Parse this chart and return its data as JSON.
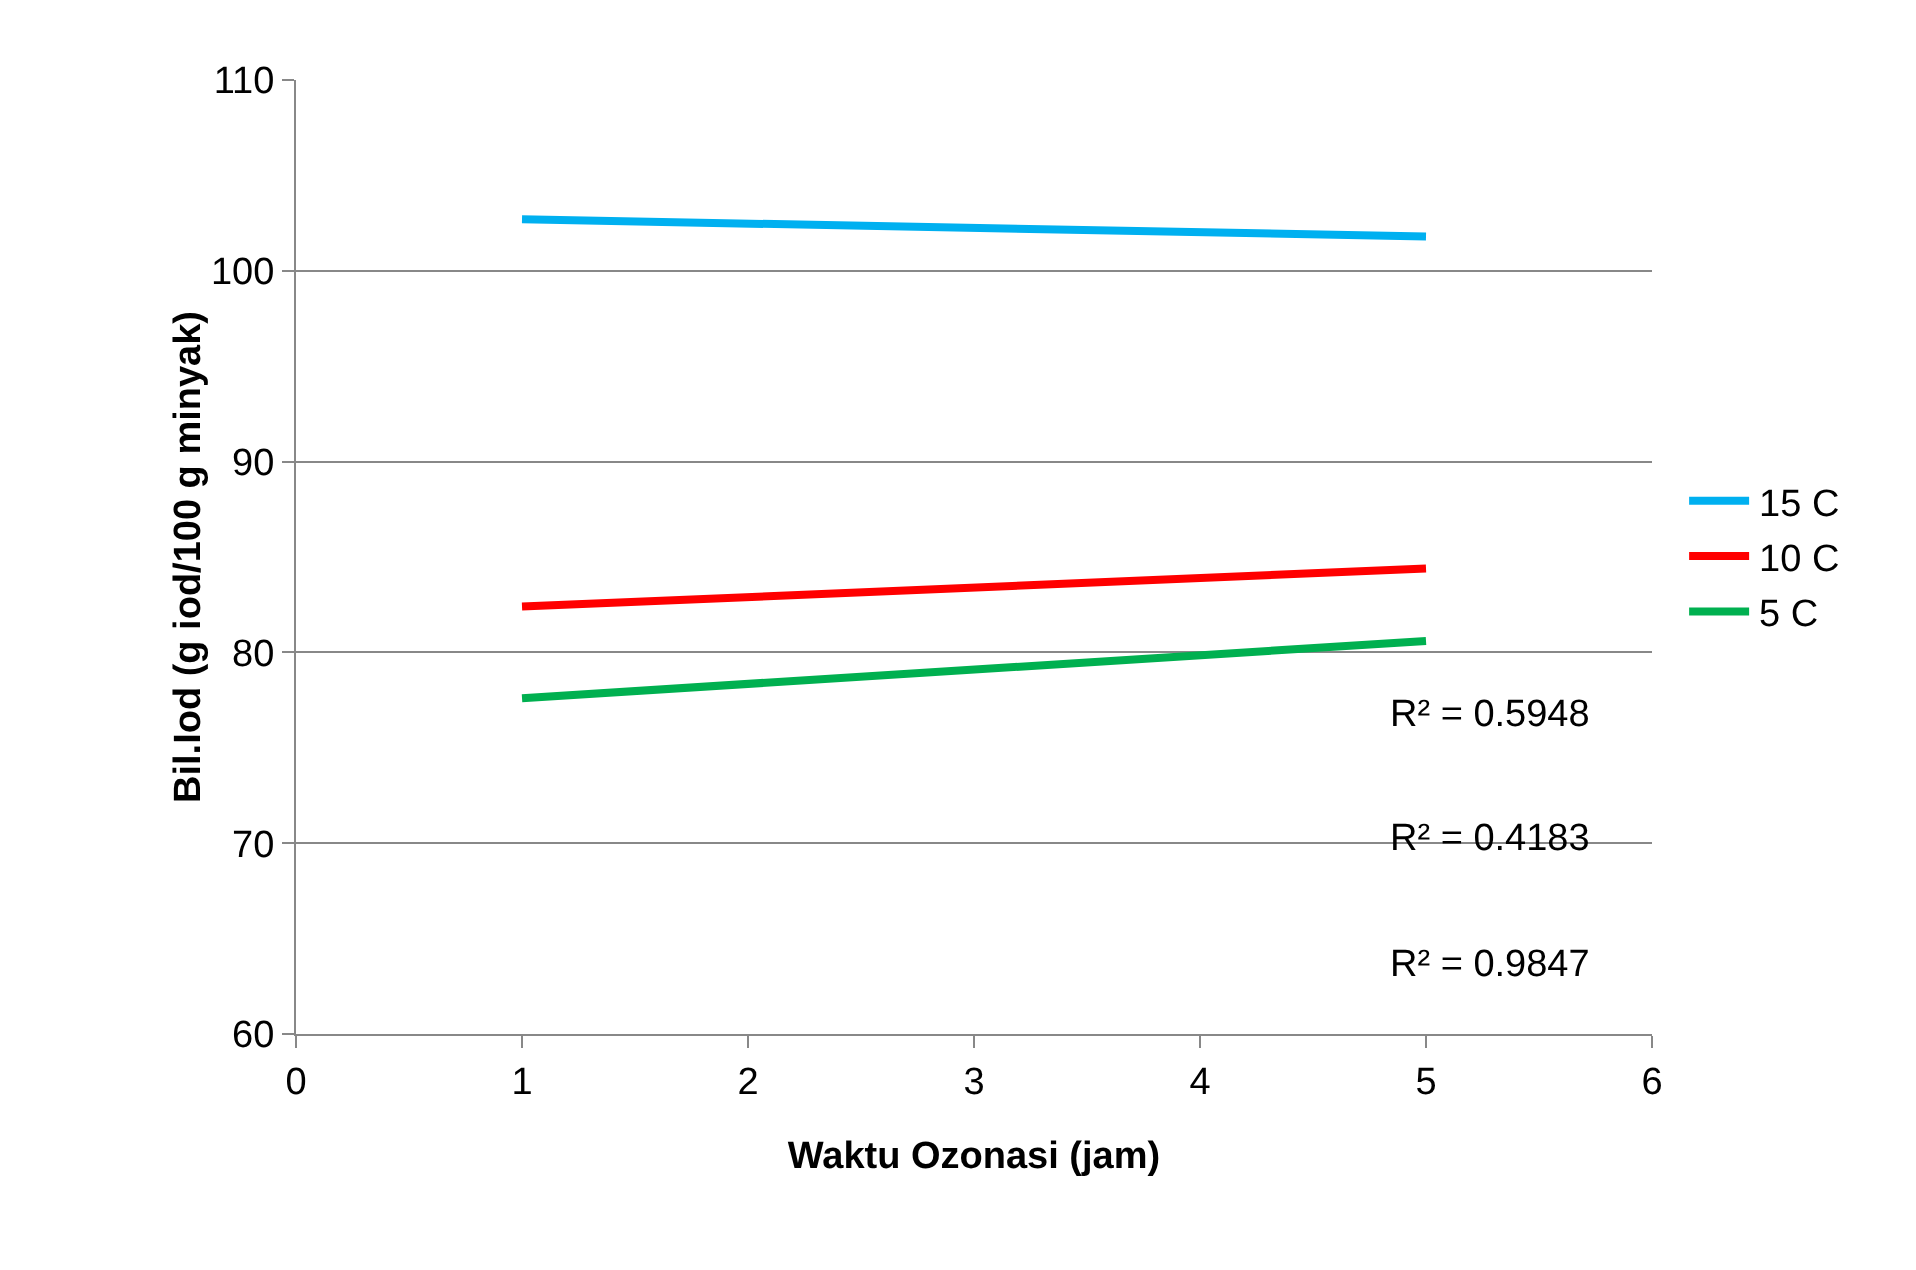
{
  "chart_data": {
    "type": "line",
    "xlabel": "Waktu Ozonasi (jam)",
    "ylabel": "Bil.Iod (g iod/100 g minyak)",
    "x": [
      1,
      5
    ],
    "series": [
      {
        "name": "15 C",
        "color": "#00b0f0",
        "values": [
          102.7,
          101.8
        ]
      },
      {
        "name": "10 C",
        "color": "#ff0000",
        "values": [
          82.4,
          84.4
        ]
      },
      {
        "name": "5 C",
        "color": "#00b050",
        "values": [
          77.6,
          80.6
        ]
      }
    ],
    "xlim": [
      0,
      6
    ],
    "xticks": [
      0,
      1,
      2,
      3,
      4,
      5,
      6
    ],
    "ylim": [
      60,
      110
    ],
    "yticks": [
      60,
      70,
      80,
      90,
      100,
      110
    ],
    "grid": "y",
    "legend": "right",
    "marker": "none",
    "line_style": "solid",
    "annotations": [
      "R² = 0.5948",
      "R² = 0.4183",
      "R² = 0.9847"
    ]
  }
}
